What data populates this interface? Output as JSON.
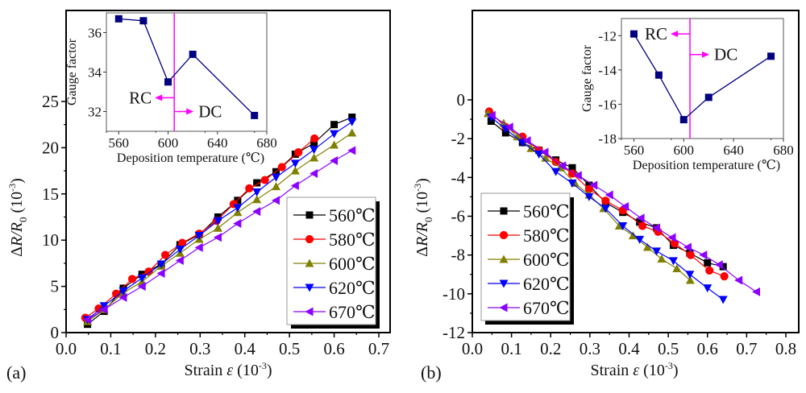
{
  "chart_data": [
    {
      "id": "a",
      "type": "line",
      "panel_label": "(a)",
      "title": "",
      "xlabel": "Strain ε (10⁻³)",
      "xlabel_parts": {
        "main": "Strain ",
        "symbol": "ε",
        "unit_open": " (10",
        "exp": "-3",
        "unit_close": ")"
      },
      "ylabel": "ΔR/R₀ (10⁻³)",
      "ylabel_parts": {
        "delta": "Δ",
        "r": "R",
        "slash": "/",
        "r0": "R",
        "sub": "0",
        "unit_open": " (10",
        "exp": "-3",
        "unit_close": ")"
      },
      "xlim": [
        0.0,
        0.72
      ],
      "ylim": [
        0,
        27.5
      ],
      "xticks": [
        "0.0",
        "0.1",
        "0.2",
        "0.3",
        "0.4",
        "0.5",
        "0.6",
        "0.7"
      ],
      "xtick_values": [
        0.0,
        0.1,
        0.2,
        0.3,
        0.4,
        0.5,
        0.6,
        0.7
      ],
      "yticks": [
        "0",
        "5",
        "10",
        "15",
        "20",
        "25"
      ],
      "ytick_values": [
        0,
        5,
        10,
        15,
        20,
        25
      ],
      "grid": false,
      "legend_position": "bottom-right",
      "series": [
        {
          "name": "560℃",
          "color": "#000000",
          "marker": "square",
          "x": [
            0.048,
            0.085,
            0.128,
            0.17,
            0.213,
            0.255,
            0.298,
            0.34,
            0.384,
            0.427,
            0.47,
            0.513,
            0.555,
            0.6,
            0.64
          ],
          "y": [
            0.9,
            2.3,
            4.8,
            6.3,
            7.4,
            9.5,
            10.6,
            12.5,
            14.3,
            16.2,
            17.4,
            19.3,
            20.5,
            22.5,
            23.3
          ]
        },
        {
          "name": "580℃",
          "color": "#ff0000",
          "marker": "circle",
          "x": [
            0.043,
            0.073,
            0.112,
            0.148,
            0.185,
            0.222,
            0.26,
            0.298,
            0.337,
            0.375,
            0.41,
            0.445,
            0.483,
            0.52,
            0.556
          ],
          "y": [
            1.6,
            2.6,
            4.2,
            5.8,
            6.6,
            8.4,
            9.7,
            10.7,
            12.1,
            13.9,
            15.6,
            16.5,
            17.9,
            19.5,
            21.0
          ]
        },
        {
          "name": "600℃",
          "color": "#808000",
          "marker": "triangle-up",
          "x": [
            0.048,
            0.085,
            0.128,
            0.17,
            0.213,
            0.255,
            0.298,
            0.34,
            0.384,
            0.427,
            0.47,
            0.513,
            0.555,
            0.6,
            0.64
          ],
          "y": [
            1.2,
            2.5,
            4.3,
            5.5,
            7.2,
            8.6,
            10.1,
            11.3,
            13.0,
            14.4,
            15.8,
            17.5,
            18.9,
            20.3,
            21.6
          ]
        },
        {
          "name": "620℃",
          "color": "#0000ff",
          "marker": "triangle-down",
          "x": [
            0.048,
            0.085,
            0.128,
            0.17,
            0.213,
            0.255,
            0.298,
            0.34,
            0.384,
            0.427,
            0.47,
            0.513,
            0.555,
            0.6,
            0.64
          ],
          "y": [
            1.4,
            2.9,
            4.5,
            5.9,
            7.4,
            9.0,
            10.5,
            12.1,
            13.5,
            15.2,
            16.8,
            18.3,
            19.8,
            21.5,
            22.8
          ]
        },
        {
          "name": "670℃",
          "color": "#8b00ff",
          "marker": "triangle-left",
          "x": [
            0.048,
            0.085,
            0.128,
            0.17,
            0.213,
            0.255,
            0.298,
            0.34,
            0.384,
            0.427,
            0.47,
            0.513,
            0.555,
            0.6,
            0.64
          ],
          "y": [
            1.4,
            2.5,
            3.8,
            5.0,
            6.4,
            7.8,
            9.2,
            10.3,
            11.8,
            13.1,
            14.3,
            15.9,
            17.2,
            18.6,
            19.7
          ]
        }
      ],
      "inset": {
        "type": "line",
        "xlabel": "Deposition temperature (℃)",
        "ylabel": "Gauge factor",
        "xlim": [
          550,
          680
        ],
        "ylim": [
          31,
          37
        ],
        "xticks": [
          "560",
          "600",
          "640",
          "680"
        ],
        "xtick_values": [
          560,
          600,
          640,
          680
        ],
        "yticks": [
          "32",
          "34",
          "36"
        ],
        "ytick_values": [
          32,
          34,
          36
        ],
        "color": "#000080",
        "marker": "square",
        "x": [
          560,
          580,
          600,
          620,
          670
        ],
        "y": [
          36.7,
          36.6,
          33.5,
          34.9,
          31.8
        ],
        "divider_x": 605,
        "divider_color": "#ff00ff",
        "annotations": [
          {
            "text": "RC",
            "arrow": "left",
            "at_y": 32.7
          },
          {
            "text": "DC",
            "arrow": "right",
            "at_y": 32.0
          }
        ]
      }
    },
    {
      "id": "b",
      "type": "line",
      "panel_label": "(b)",
      "title": "",
      "xlabel": "Strain ε (10⁻³)",
      "xlabel_parts": {
        "main": "Strain ",
        "symbol": "ε",
        "unit_open": " (10",
        "exp": "-3",
        "unit_close": ")"
      },
      "ylabel": "ΔR/R₀ (10⁻³)",
      "ylabel_parts": {
        "delta": "Δ",
        "r": "R",
        "slash": "/",
        "r0": "R",
        "sub": "0",
        "unit_open": " (10",
        "exp": "-3",
        "unit_close": ")"
      },
      "xlim": [
        0.0,
        0.835
      ],
      "ylim": [
        -12,
        5
      ],
      "xticks": [
        "0.0",
        "0.1",
        "0.2",
        "0.3",
        "0.4",
        "0.5",
        "0.6",
        "0.7",
        "0.8"
      ],
      "xtick_values": [
        0.0,
        0.1,
        0.2,
        0.3,
        0.4,
        0.5,
        0.6,
        0.7,
        0.8
      ],
      "yticks": [
        "0",
        "-2",
        "-4",
        "-6",
        "-8",
        "-10",
        "-12"
      ],
      "ytick_values": [
        0,
        -2,
        -4,
        -6,
        -8,
        -10,
        -12
      ],
      "grid": false,
      "legend_position": "bottom-left",
      "series": [
        {
          "name": "560℃",
          "color": "#000000",
          "marker": "square",
          "x": [
            0.048,
            0.085,
            0.128,
            0.17,
            0.213,
            0.255,
            0.298,
            0.34,
            0.384,
            0.427,
            0.47,
            0.513,
            0.555,
            0.6,
            0.64
          ],
          "y": [
            -1.1,
            -1.7,
            -2.2,
            -2.6,
            -3.1,
            -3.5,
            -4.4,
            -5.3,
            -5.8,
            -6.3,
            -6.6,
            -7.5,
            -7.9,
            -8.4,
            -8.6
          ]
        },
        {
          "name": "580℃",
          "color": "#ff0000",
          "marker": "circle",
          "x": [
            0.043,
            0.085,
            0.128,
            0.17,
            0.213,
            0.255,
            0.298,
            0.34,
            0.384,
            0.434,
            0.474,
            0.516,
            0.557,
            0.605,
            0.643
          ],
          "y": [
            -0.6,
            -1.4,
            -1.9,
            -2.6,
            -3.2,
            -3.8,
            -4.6,
            -5.2,
            -5.7,
            -6.5,
            -6.8,
            -7.4,
            -8.0,
            -8.8,
            -9.1
          ]
        },
        {
          "name": "600℃",
          "color": "#808000",
          "marker": "triangle-up",
          "x": [
            0.04,
            0.08,
            0.115,
            0.15,
            0.187,
            0.225,
            0.262,
            0.298,
            0.335,
            0.375,
            0.41,
            0.447,
            0.483,
            0.522,
            0.556
          ],
          "y": [
            -0.7,
            -1.2,
            -1.9,
            -2.5,
            -3.0,
            -3.5,
            -4.3,
            -4.9,
            -5.6,
            -6.5,
            -7.0,
            -7.6,
            -8.2,
            -8.7,
            -9.3
          ]
        },
        {
          "name": "620℃",
          "color": "#0000ff",
          "marker": "triangle-down",
          "x": [
            0.048,
            0.085,
            0.128,
            0.17,
            0.213,
            0.255,
            0.298,
            0.34,
            0.384,
            0.427,
            0.47,
            0.513,
            0.555,
            0.6,
            0.64
          ],
          "y": [
            -0.9,
            -1.5,
            -2.2,
            -2.8,
            -3.7,
            -4.3,
            -5.0,
            -5.6,
            -6.5,
            -7.2,
            -7.8,
            -8.3,
            -9.0,
            -9.7,
            -10.3
          ]
        },
        {
          "name": "670℃",
          "color": "#8b00ff",
          "marker": "triangle-left",
          "x": [
            0.05,
            0.095,
            0.14,
            0.185,
            0.23,
            0.27,
            0.31,
            0.35,
            0.39,
            0.43,
            0.47,
            0.51,
            0.55,
            0.59,
            0.63,
            0.68,
            0.725
          ],
          "y": [
            -0.8,
            -1.4,
            -2.1,
            -2.7,
            -3.4,
            -3.9,
            -4.4,
            -4.9,
            -5.5,
            -6.1,
            -6.6,
            -7.1,
            -7.6,
            -8.0,
            -8.5,
            -9.3,
            -9.9
          ]
        }
      ],
      "inset": {
        "type": "line",
        "xlabel": "Deposition temperature (℃)",
        "ylabel": "Gauge factor",
        "xlim": [
          550,
          680
        ],
        "ylim": [
          -18,
          -11
        ],
        "xticks": [
          "560",
          "600",
          "640",
          "680"
        ],
        "xtick_values": [
          560,
          600,
          640,
          680
        ],
        "yticks": [
          "-12",
          "-14",
          "-16",
          "-18"
        ],
        "ytick_values": [
          -12,
          -14,
          -16,
          -18
        ],
        "color": "#000080",
        "marker": "square",
        "x": [
          560,
          580,
          600,
          620,
          670
        ],
        "y": [
          -11.9,
          -14.3,
          -16.9,
          -15.6,
          -13.2
        ],
        "divider_x": 605,
        "divider_color": "#ff00ff",
        "annotations": [
          {
            "text": "RC",
            "arrow": "left",
            "at_y": -11.9
          },
          {
            "text": "DC",
            "arrow": "right",
            "at_y": -13.1
          }
        ]
      }
    }
  ]
}
